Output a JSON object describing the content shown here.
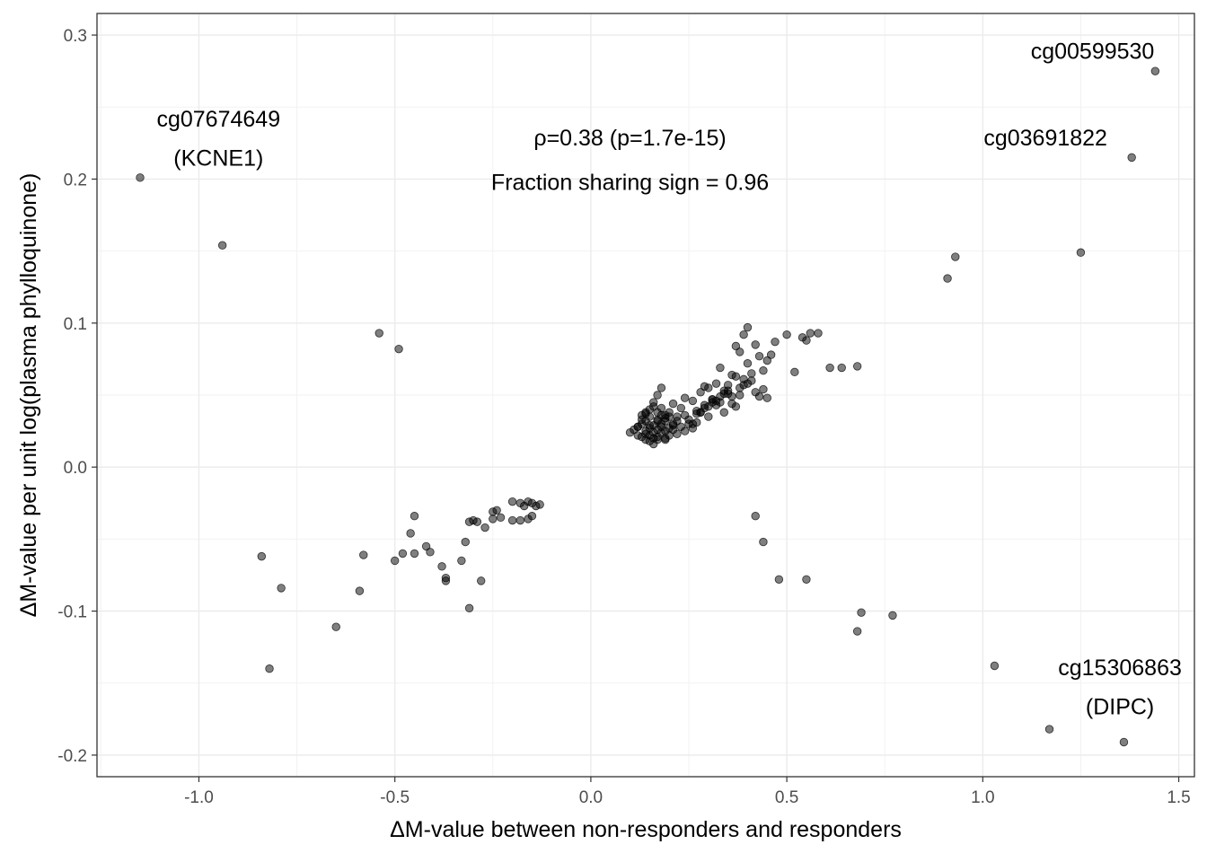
{
  "chart_data": {
    "type": "scatter",
    "xlabel": "ΔM-value between non-responders and responders",
    "ylabel": "ΔM-value per unit log(plasma phylloquinone)",
    "xlim": [
      -1.26,
      1.54
    ],
    "ylim": [
      -0.215,
      0.315
    ],
    "x_ticks": [
      -1.0,
      -0.5,
      0.0,
      0.5,
      1.0,
      1.5
    ],
    "x_tick_labels": [
      "-1.0",
      "-0.5",
      "0.0",
      "0.5",
      "1.0",
      "1.5"
    ],
    "y_ticks": [
      -0.2,
      -0.1,
      0.0,
      0.1,
      0.2,
      0.3
    ],
    "y_tick_labels": [
      "-0.2",
      "-0.1",
      "0.0",
      "0.1",
      "0.2",
      "0.3"
    ],
    "grid": true,
    "point_color": "#000000",
    "point_alpha": 0.5,
    "annotations": [
      {
        "text": "ρ=0.38 (p=1.7e-15)",
        "x": 0.1,
        "y": 0.229
      },
      {
        "text": "Fraction sharing sign = 0.96",
        "x": 0.1,
        "y": 0.198
      },
      {
        "text": "cg07674649",
        "x": -0.95,
        "y": 0.242
      },
      {
        "text": "(KCNE1)",
        "x": -0.95,
        "y": 0.215
      },
      {
        "text": "cg00599530",
        "x": 1.28,
        "y": 0.289
      },
      {
        "text": "cg03691822",
        "x": 1.16,
        "y": 0.229
      },
      {
        "text": "cg15306863",
        "x": 1.35,
        "y": -0.139
      },
      {
        "text": "(DIPC)",
        "x": 1.35,
        "y": -0.166
      }
    ],
    "series": [
      {
        "x": [
          -1.15,
          -0.94,
          -0.54,
          -0.49,
          1.44,
          1.38,
          1.25,
          0.93,
          0.91,
          -0.84,
          -0.79,
          -0.82,
          -0.65,
          -0.58,
          -0.59,
          -0.5,
          -0.48,
          -0.46,
          -0.45,
          -0.45,
          -0.42,
          -0.41,
          -0.38,
          -0.37,
          -0.37,
          -0.33,
          -0.32,
          -0.31,
          -0.31,
          -0.29,
          -0.3,
          -0.28,
          -0.27,
          -0.25,
          -0.25,
          -0.24,
          -0.23,
          -0.2,
          -0.2,
          -0.18,
          -0.18,
          -0.17,
          -0.16,
          -0.15,
          -0.14,
          -0.13,
          -0.15,
          -0.16,
          0.42,
          0.44,
          0.48,
          0.55,
          0.68,
          0.69,
          0.77,
          1.03,
          1.17,
          1.36,
          0.1,
          0.11,
          0.12,
          0.12,
          0.13,
          0.13,
          0.14,
          0.14,
          0.14,
          0.15,
          0.15,
          0.15,
          0.16,
          0.16,
          0.16,
          0.17,
          0.17,
          0.17,
          0.18,
          0.18,
          0.18,
          0.19,
          0.19,
          0.19,
          0.2,
          0.2,
          0.21,
          0.21,
          0.22,
          0.13,
          0.14,
          0.15,
          0.16,
          0.17,
          0.18,
          0.19,
          0.2,
          0.15,
          0.16,
          0.17,
          0.12,
          0.13,
          0.14,
          0.18,
          0.19,
          0.16,
          0.17,
          0.18,
          0.14,
          0.15,
          0.2,
          0.21,
          0.22,
          0.23,
          0.24,
          0.25,
          0.26,
          0.27,
          0.28,
          0.29,
          0.3,
          0.31,
          0.32,
          0.33,
          0.34,
          0.35,
          0.36,
          0.37,
          0.38,
          0.39,
          0.4,
          0.41,
          0.42,
          0.43,
          0.44,
          0.45,
          0.23,
          0.25,
          0.27,
          0.29,
          0.31,
          0.33,
          0.35,
          0.37,
          0.39,
          0.41,
          0.22,
          0.24,
          0.26,
          0.28,
          0.3,
          0.32,
          0.34,
          0.36,
          0.38,
          0.26,
          0.3,
          0.34,
          0.38,
          0.42,
          0.46,
          0.5,
          0.54,
          0.58,
          0.61,
          0.64,
          0.68,
          0.37,
          0.39,
          0.4,
          0.43,
          0.45,
          0.47,
          0.52,
          0.55,
          0.56,
          0.29,
          0.33,
          0.36,
          0.4,
          0.44,
          0.27,
          0.31,
          0.35,
          0.21,
          0.19,
          0.17,
          0.24,
          0.28,
          0.32
        ],
        "y": [
          0.201,
          0.154,
          0.093,
          0.082,
          0.275,
          0.215,
          0.149,
          0.146,
          0.131,
          -0.062,
          -0.084,
          -0.14,
          -0.111,
          -0.061,
          -0.086,
          -0.065,
          -0.06,
          -0.046,
          -0.034,
          -0.06,
          -0.055,
          -0.059,
          -0.069,
          -0.077,
          -0.079,
          -0.065,
          -0.052,
          -0.038,
          -0.098,
          -0.038,
          -0.037,
          -0.079,
          -0.042,
          -0.031,
          -0.036,
          -0.03,
          -0.035,
          -0.024,
          -0.037,
          -0.025,
          -0.037,
          -0.027,
          -0.024,
          -0.025,
          -0.027,
          -0.026,
          -0.034,
          -0.036,
          -0.034,
          -0.052,
          -0.078,
          -0.078,
          -0.114,
          -0.101,
          -0.103,
          -0.138,
          -0.182,
          -0.191,
          0.024,
          0.026,
          0.022,
          0.028,
          0.03,
          0.021,
          0.025,
          0.032,
          0.019,
          0.027,
          0.022,
          0.035,
          0.024,
          0.029,
          0.02,
          0.026,
          0.033,
          0.021,
          0.028,
          0.024,
          0.03,
          0.025,
          0.02,
          0.034,
          0.027,
          0.022,
          0.03,
          0.026,
          0.023,
          0.036,
          0.038,
          0.04,
          0.042,
          0.038,
          0.036,
          0.032,
          0.035,
          0.018,
          0.016,
          0.019,
          0.028,
          0.033,
          0.037,
          0.041,
          0.019,
          0.045,
          0.05,
          0.055,
          0.023,
          0.029,
          0.038,
          0.044,
          0.035,
          0.041,
          0.048,
          0.03,
          0.046,
          0.039,
          0.052,
          0.043,
          0.055,
          0.047,
          0.058,
          0.045,
          0.051,
          0.057,
          0.049,
          0.063,
          0.055,
          0.061,
          0.058,
          0.065,
          0.052,
          0.049,
          0.054,
          0.048,
          0.028,
          0.033,
          0.037,
          0.041,
          0.045,
          0.049,
          0.053,
          0.042,
          0.057,
          0.06,
          0.032,
          0.036,
          0.03,
          0.038,
          0.042,
          0.046,
          0.038,
          0.044,
          0.05,
          0.027,
          0.035,
          0.053,
          0.08,
          0.085,
          0.078,
          0.092,
          0.09,
          0.093,
          0.069,
          0.069,
          0.07,
          0.084,
          0.092,
          0.097,
          0.077,
          0.074,
          0.087,
          0.066,
          0.088,
          0.093,
          0.056,
          0.069,
          0.064,
          0.072,
          0.067,
          0.031,
          0.047,
          0.051,
          0.029,
          0.036,
          0.032,
          0.025,
          0.038,
          0.043
        ]
      }
    ]
  }
}
